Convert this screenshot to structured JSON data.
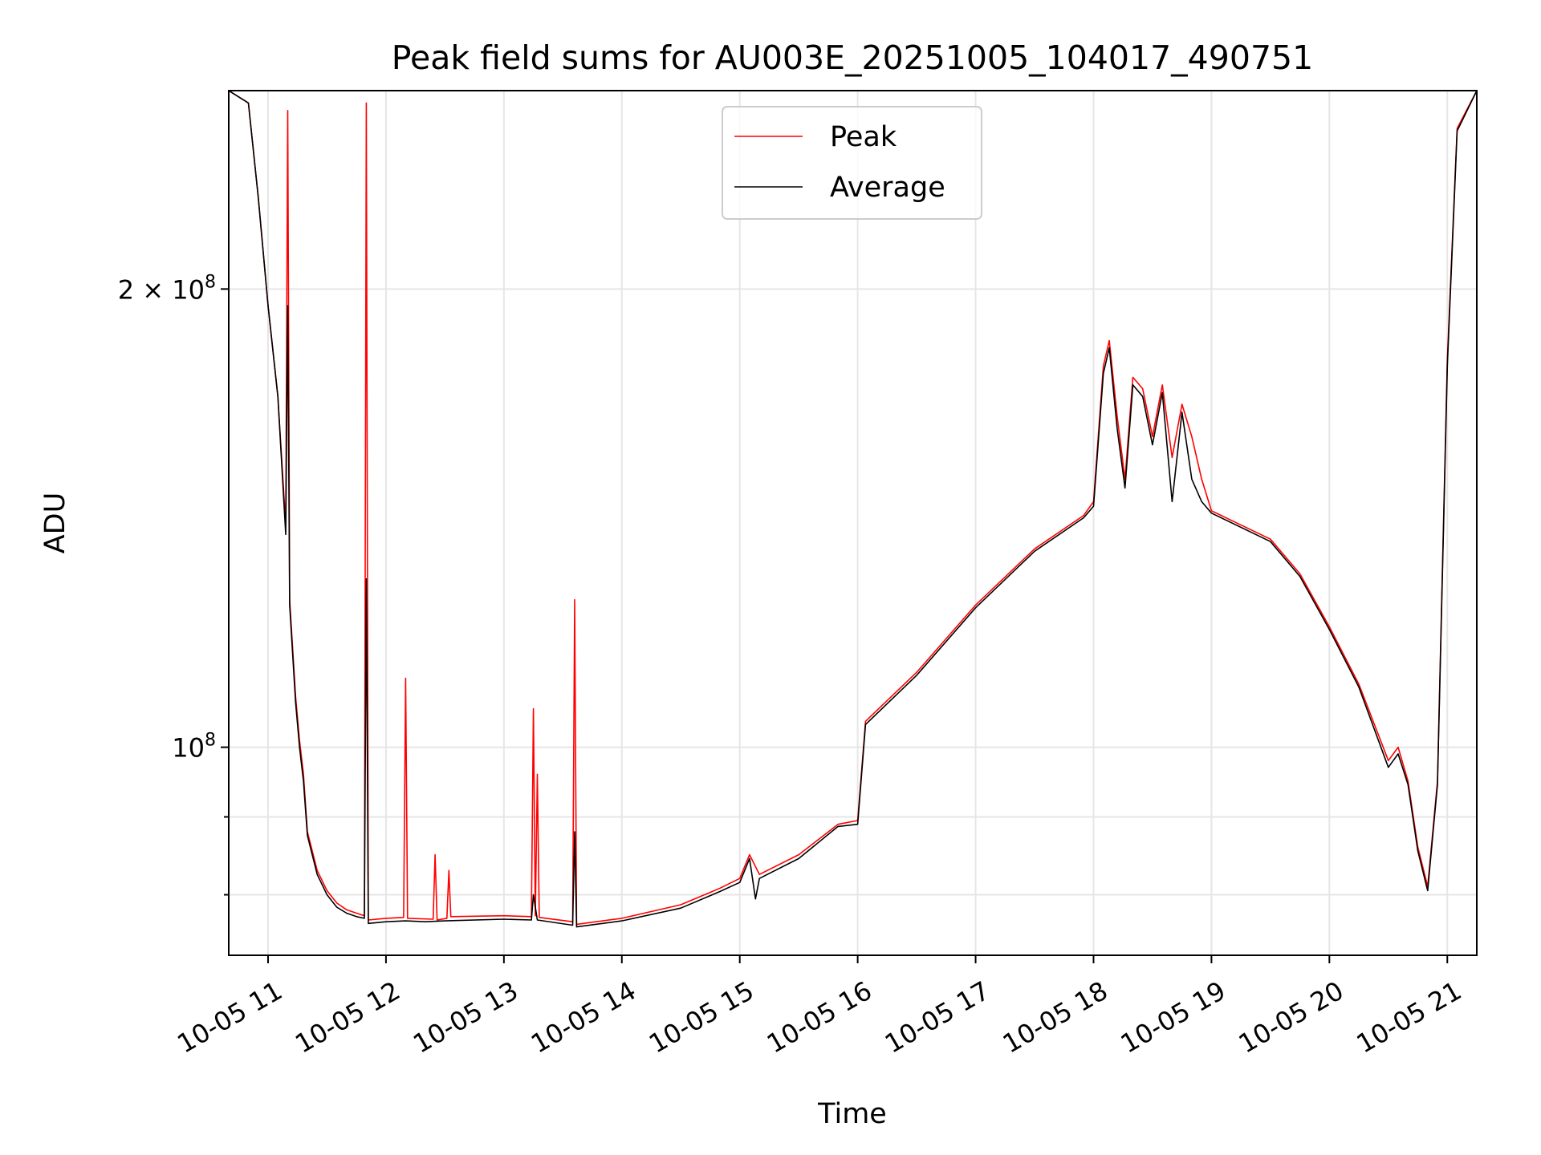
{
  "chart_data": {
    "type": "line",
    "title": "Peak field sums for AU003E_20251005_104017_490751",
    "xlabel": "Time",
    "ylabel": "ADU",
    "yscale": "log",
    "xlim": [
      "10-05 10:40",
      "10-05 21:15"
    ],
    "ylim": [
      73000000,
      270000000
    ],
    "grid": true,
    "legend_position": "top-center",
    "x_ticks": [
      "10-05 11",
      "10-05 12",
      "10-05 13",
      "10-05 14",
      "10-05 15",
      "10-05 16",
      "10-05 17",
      "10-05 18",
      "10-05 19",
      "10-05 20",
      "10-05 21"
    ],
    "y_ticks": [
      {
        "value": 100000000,
        "label_base": "10",
        "label_exp": "8"
      },
      {
        "value": 200000000,
        "label_base": "2 × 10",
        "label_exp": "8"
      }
    ],
    "y_minor_ticks": [
      80000000,
      90000000
    ],
    "series": [
      {
        "name": "Peak",
        "color": "#ff0000",
        "points": [
          [
            "10-05 10:40",
            270000000
          ],
          [
            "10-05 10:50",
            265000000
          ],
          [
            "10-05 10:55",
            230000000
          ],
          [
            "10-05 11:00",
            195000000
          ],
          [
            "10-05 11:05",
            170000000
          ],
          [
            "10-05 11:09",
            140000000
          ],
          [
            "10-05 11:10",
            262000000
          ],
          [
            "10-05 11:11",
            125000000
          ],
          [
            "10-05 11:14",
            108000000
          ],
          [
            "10-05 11:16",
            101000000
          ],
          [
            "10-05 11:18",
            96000000
          ],
          [
            "10-05 11:20",
            88000000
          ],
          [
            "10-05 11:25",
            83000000
          ],
          [
            "10-05 11:30",
            80500000
          ],
          [
            "10-05 11:35",
            79000000
          ],
          [
            "10-05 11:40",
            78200000
          ],
          [
            "10-05 11:45",
            77800000
          ],
          [
            "10-05 11:49",
            77500000
          ],
          [
            "10-05 11:50",
            265000000
          ],
          [
            "10-05 11:51",
            77000000
          ],
          [
            "10-05 12:00",
            77200000
          ],
          [
            "10-05 12:09",
            77300000
          ],
          [
            "10-05 12:10",
            111000000
          ],
          [
            "10-05 12:11",
            77200000
          ],
          [
            "10-05 12:24",
            77100000
          ],
          [
            "10-05 12:25",
            85000000
          ],
          [
            "10-05 12:26",
            77000000
          ],
          [
            "10-05 12:31",
            77200000
          ],
          [
            "10-05 12:32",
            83000000
          ],
          [
            "10-05 12:33",
            77400000
          ],
          [
            "10-05 13:00",
            77500000
          ],
          [
            "10-05 13:14",
            77400000
          ],
          [
            "10-05 13:15",
            106000000
          ],
          [
            "10-05 13:16",
            77500000
          ],
          [
            "10-05 13:17",
            96000000
          ],
          [
            "10-05 13:18",
            77300000
          ],
          [
            "10-05 13:35",
            76800000
          ],
          [
            "10-05 13:36",
            125000000
          ],
          [
            "10-05 13:37",
            76500000
          ],
          [
            "10-05 14:00",
            77200000
          ],
          [
            "10-05 14:30",
            78800000
          ],
          [
            "10-05 14:50",
            80800000
          ],
          [
            "10-05 15:00",
            82000000
          ],
          [
            "10-05 15:05",
            85000000
          ],
          [
            "10-05 15:10",
            82500000
          ],
          [
            "10-05 15:30",
            85000000
          ],
          [
            "10-05 15:50",
            89000000
          ],
          [
            "10-05 16:00",
            89500000
          ],
          [
            "10-05 16:04",
            104000000
          ],
          [
            "10-05 16:30",
            112000000
          ],
          [
            "10-05 17:00",
            124000000
          ],
          [
            "10-05 17:30",
            135000000
          ],
          [
            "10-05 17:55",
            142000000
          ],
          [
            "10-05 18:00",
            145000000
          ],
          [
            "10-05 18:05",
            178000000
          ],
          [
            "10-05 18:08",
            185000000
          ],
          [
            "10-05 18:12",
            165000000
          ],
          [
            "10-05 18:16",
            150000000
          ],
          [
            "10-05 18:20",
            175000000
          ],
          [
            "10-05 18:25",
            172000000
          ],
          [
            "10-05 18:30",
            160000000
          ],
          [
            "10-05 18:35",
            173000000
          ],
          [
            "10-05 18:40",
            155000000
          ],
          [
            "10-05 18:45",
            168000000
          ],
          [
            "10-05 18:50",
            160000000
          ],
          [
            "10-05 18:55",
            150000000
          ],
          [
            "10-05 19:00",
            143000000
          ],
          [
            "10-05 19:30",
            137000000
          ],
          [
            "10-05 19:45",
            130000000
          ],
          [
            "10-05 20:00",
            120000000
          ],
          [
            "10-05 20:15",
            110000000
          ],
          [
            "10-05 20:30",
            98000000
          ],
          [
            "10-05 20:35",
            100000000
          ],
          [
            "10-05 20:40",
            95000000
          ],
          [
            "10-05 20:45",
            86000000
          ],
          [
            "10-05 20:50",
            81000000
          ],
          [
            "10-05 20:55",
            95000000
          ],
          [
            "10-05 21:00",
            180000000
          ],
          [
            "10-05 21:05",
            255000000
          ],
          [
            "10-05 21:15",
            270000000
          ]
        ]
      },
      {
        "name": "Average",
        "color": "#000000",
        "points": [
          [
            "10-05 10:40",
            270000000
          ],
          [
            "10-05 10:50",
            265000000
          ],
          [
            "10-05 10:55",
            230000000
          ],
          [
            "10-05 11:00",
            195000000
          ],
          [
            "10-05 11:05",
            170000000
          ],
          [
            "10-05 11:09",
            138000000
          ],
          [
            "10-05 11:10",
            195000000
          ],
          [
            "10-05 11:11",
            124000000
          ],
          [
            "10-05 11:14",
            107000000
          ],
          [
            "10-05 11:16",
            100000000
          ],
          [
            "10-05 11:18",
            95000000
          ],
          [
            "10-05 11:20",
            87500000
          ],
          [
            "10-05 11:25",
            82500000
          ],
          [
            "10-05 11:30",
            80000000
          ],
          [
            "10-05 11:35",
            78500000
          ],
          [
            "10-05 11:40",
            77800000
          ],
          [
            "10-05 11:45",
            77400000
          ],
          [
            "10-05 11:49",
            77200000
          ],
          [
            "10-05 11:50",
            129000000
          ],
          [
            "10-05 11:51",
            76600000
          ],
          [
            "10-05 12:00",
            76800000
          ],
          [
            "10-05 12:10",
            76900000
          ],
          [
            "10-05 12:20",
            76800000
          ],
          [
            "10-05 12:30",
            76900000
          ],
          [
            "10-05 13:00",
            77100000
          ],
          [
            "10-05 13:14",
            77000000
          ],
          [
            "10-05 13:15",
            80000000
          ],
          [
            "10-05 13:17",
            77000000
          ],
          [
            "10-05 13:35",
            76400000
          ],
          [
            "10-05 13:36",
            88000000
          ],
          [
            "10-05 13:37",
            76200000
          ],
          [
            "10-05 14:00",
            76900000
          ],
          [
            "10-05 14:30",
            78400000
          ],
          [
            "10-05 14:50",
            80400000
          ],
          [
            "10-05 15:00",
            81500000
          ],
          [
            "10-05 15:05",
            84500000
          ],
          [
            "10-05 15:08",
            79500000
          ],
          [
            "10-05 15:10",
            82000000
          ],
          [
            "10-05 15:30",
            84500000
          ],
          [
            "10-05 15:50",
            88700000
          ],
          [
            "10-05 16:00",
            89000000
          ],
          [
            "10-05 16:04",
            103500000
          ],
          [
            "10-05 16:30",
            111500000
          ],
          [
            "10-05 17:00",
            123500000
          ],
          [
            "10-05 17:30",
            134500000
          ],
          [
            "10-05 17:55",
            141500000
          ],
          [
            "10-05 18:00",
            144000000
          ],
          [
            "10-05 18:05",
            176000000
          ],
          [
            "10-05 18:08",
            183000000
          ],
          [
            "10-05 18:12",
            162000000
          ],
          [
            "10-05 18:16",
            148000000
          ],
          [
            "10-05 18:20",
            173000000
          ],
          [
            "10-05 18:25",
            170000000
          ],
          [
            "10-05 18:30",
            158000000
          ],
          [
            "10-05 18:35",
            171000000
          ],
          [
            "10-05 18:40",
            145000000
          ],
          [
            "10-05 18:45",
            166000000
          ],
          [
            "10-05 18:50",
            150000000
          ],
          [
            "10-05 18:55",
            145000000
          ],
          [
            "10-05 19:00",
            142500000
          ],
          [
            "10-05 19:30",
            136500000
          ],
          [
            "10-05 19:45",
            129500000
          ],
          [
            "10-05 20:00",
            119500000
          ],
          [
            "10-05 20:15",
            109500000
          ],
          [
            "10-05 20:30",
            97000000
          ],
          [
            "10-05 20:35",
            99000000
          ],
          [
            "10-05 20:40",
            94500000
          ],
          [
            "10-05 20:45",
            85500000
          ],
          [
            "10-05 20:50",
            80500000
          ],
          [
            "10-05 20:55",
            94500000
          ],
          [
            "10-05 21:00",
            178000000
          ],
          [
            "10-05 21:05",
            254000000
          ],
          [
            "10-05 21:15",
            270000000
          ]
        ]
      }
    ]
  }
}
